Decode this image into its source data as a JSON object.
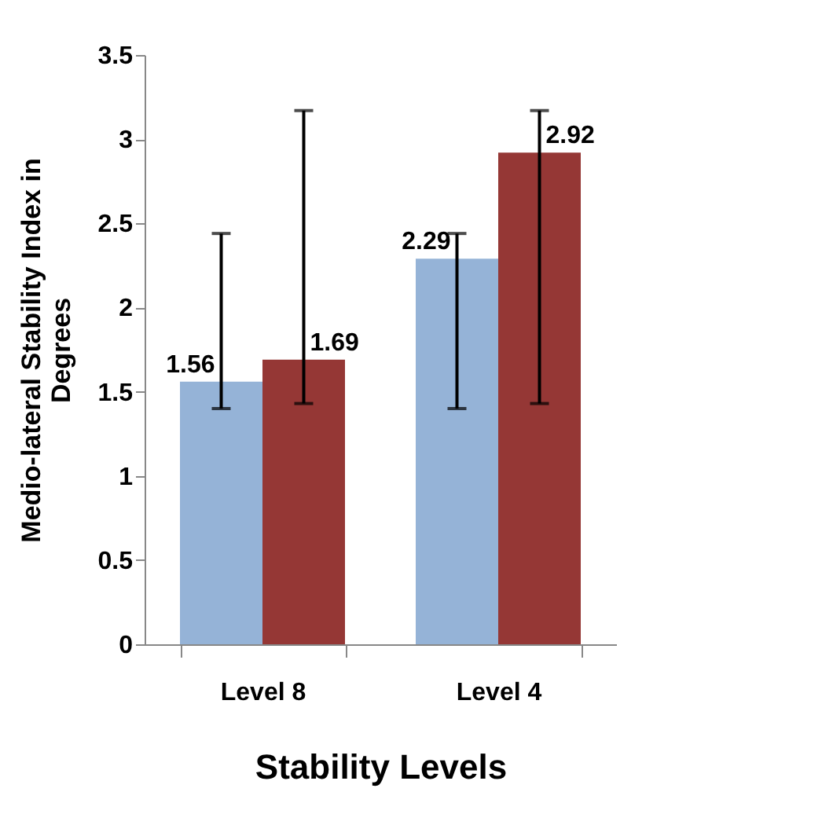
{
  "chart_data": {
    "type": "bar",
    "xlabel": "Stability Levels",
    "ylabel": "Medio-lateral Stability Index in Degrees",
    "categories": [
      "Level 8",
      "Level 4"
    ],
    "series": [
      {
        "color": "#95b3d7",
        "values": [
          1.56,
          2.29
        ],
        "errors": [
          [
            1.4,
            2.44
          ],
          [
            1.4,
            2.44
          ]
        ],
        "value_labels": [
          "1.56",
          "2.29"
        ]
      },
      {
        "color": "#953735",
        "values": [
          1.69,
          2.92
        ],
        "errors": [
          [
            1.43,
            3.17
          ],
          [
            1.43,
            3.17
          ]
        ],
        "value_labels": [
          "1.69",
          "2.92"
        ]
      }
    ],
    "ylim": [
      0,
      3.5
    ],
    "yticks": [
      0,
      0.5,
      1,
      1.5,
      2,
      2.5,
      3,
      3.5
    ],
    "grid": false
  }
}
